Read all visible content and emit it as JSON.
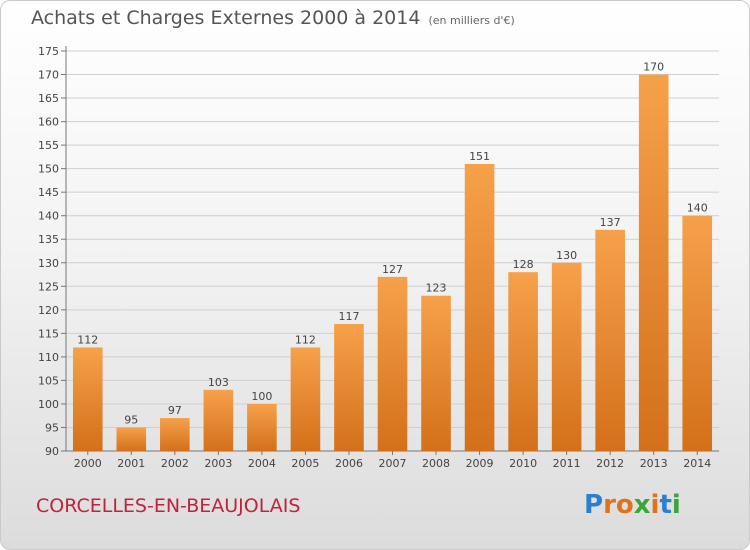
{
  "title": "Achats et Charges Externes 2000 à 2014",
  "subtitle": "(en milliers d'€)",
  "commune": "CORCELLES-EN-BEAUJOLAIS",
  "logo": {
    "text": "Proxiti",
    "letters": [
      "P",
      "r",
      "o",
      "x",
      "i",
      "t",
      "i"
    ],
    "colors": [
      "#2b7fd0",
      "#e0731a",
      "#e0731a",
      "#3aa63a",
      "#e0731a",
      "#2b7fd0",
      "#3aa63a"
    ]
  },
  "colors": {
    "bar_light": "#f6a14a",
    "bar_dark": "#d4701a",
    "grid": "#cfcfcf",
    "commune": "#c0233b"
  },
  "chart_data": {
    "type": "bar",
    "title": "Achats et Charges Externes 2000 à 2014",
    "subtitle": "(en milliers d'€)",
    "xlabel": "",
    "ylabel": "",
    "categories": [
      "2000",
      "2001",
      "2002",
      "2003",
      "2004",
      "2005",
      "2006",
      "2007",
      "2008",
      "2009",
      "2010",
      "2011",
      "2012",
      "2013",
      "2014"
    ],
    "values": [
      112,
      95,
      97,
      103,
      100,
      112,
      117,
      127,
      123,
      151,
      128,
      130,
      137,
      170,
      140
    ],
    "ylim": [
      90,
      175
    ],
    "yticks": [
      90,
      95,
      100,
      105,
      110,
      115,
      120,
      125,
      130,
      135,
      140,
      145,
      150,
      155,
      160,
      165,
      170,
      175
    ],
    "grid": true,
    "legend": "none"
  }
}
